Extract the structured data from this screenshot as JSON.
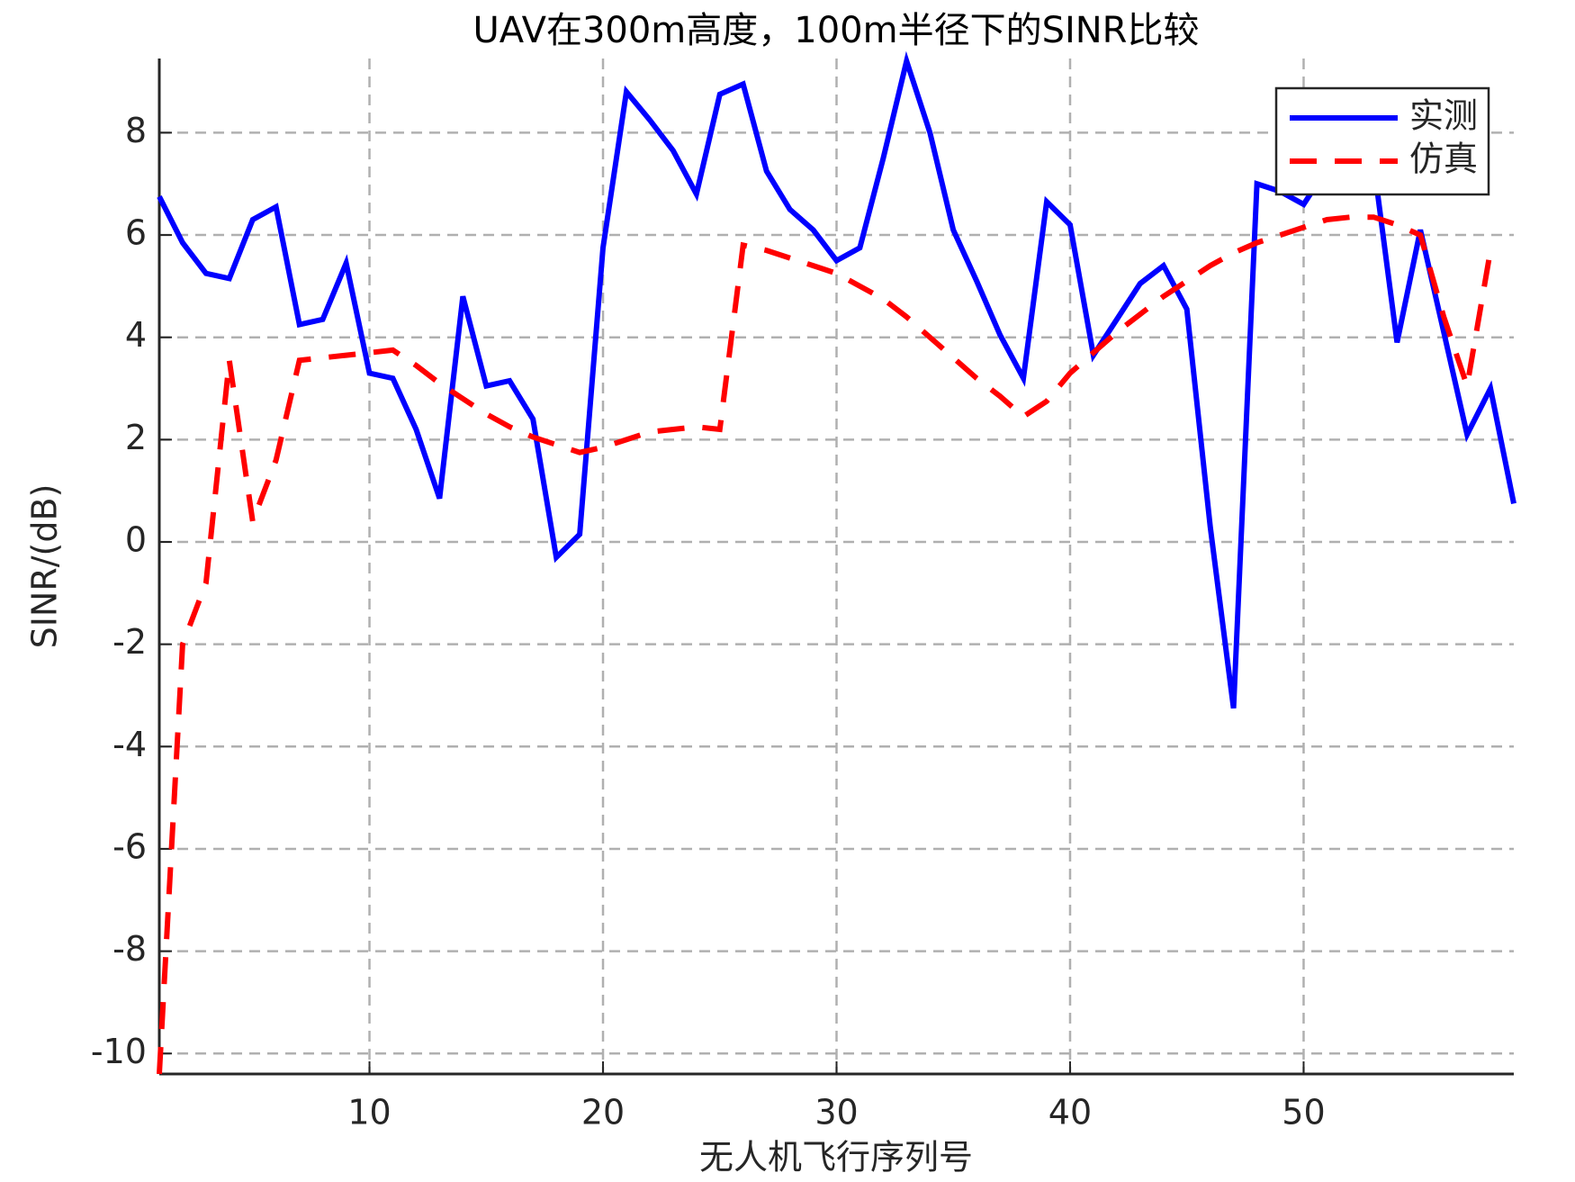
{
  "chart_data": {
    "type": "line",
    "title": "UAV在300m高度，100m半径下的SINR比较",
    "x_label": "无人机飞行序列号",
    "y_label": "SINR/(dB)",
    "x": [
      1,
      2,
      3,
      4,
      5,
      6,
      7,
      8,
      9,
      10,
      11,
      12,
      13,
      14,
      15,
      16,
      17,
      18,
      19,
      20,
      21,
      22,
      23,
      24,
      25,
      26,
      27,
      28,
      29,
      30,
      31,
      32,
      33,
      34,
      35,
      36,
      37,
      38,
      39,
      40,
      41,
      42,
      43,
      44,
      45,
      46,
      47,
      48,
      49,
      50,
      51,
      52,
      53,
      54,
      55,
      56,
      57,
      58,
      59
    ],
    "series": [
      {
        "name": "实测",
        "color": "#0000ff",
        "dash": "solid",
        "values": [
          6.75,
          5.85,
          5.25,
          5.15,
          6.3,
          6.55,
          4.25,
          4.35,
          5.45,
          3.3,
          3.2,
          2.2,
          0.85,
          4.8,
          3.05,
          3.15,
          2.4,
          -0.3,
          0.15,
          5.75,
          8.8,
          8.25,
          7.65,
          6.8,
          8.75,
          8.95,
          7.25,
          6.5,
          6.1,
          5.5,
          5.75,
          7.5,
          9.4,
          8.0,
          6.1,
          5.1,
          4.05,
          3.2,
          6.65,
          6.2,
          3.65,
          4.35,
          5.05,
          5.4,
          4.55,
          0.3,
          -3.25,
          7.0,
          6.85,
          6.6,
          7.3,
          7.6,
          7.4,
          3.9,
          6.1,
          4.1,
          2.1,
          3.0,
          0.75
        ]
      },
      {
        "name": "仿真",
        "color": "#ff0000",
        "dash": "dashed",
        "values": [
          -10.4,
          -2,
          -0.8,
          3.55,
          0.4,
          1.6,
          3.55,
          3.6,
          3.65,
          3.7,
          3.75,
          3.45,
          3.1,
          2.8,
          2.5,
          2.25,
          2.05,
          1.9,
          1.75,
          1.85,
          2.0,
          2.15,
          2.2,
          2.25,
          2.2,
          5.8,
          5.7,
          5.55,
          5.4,
          5.25,
          5.0,
          4.75,
          4.4,
          4.0,
          3.6,
          3.2,
          2.85,
          2.45,
          2.75,
          3.3,
          3.7,
          4.1,
          4.45,
          4.8,
          5.1,
          5.4,
          5.65,
          5.85,
          6.0,
          6.15,
          6.3,
          6.35,
          6.35,
          6.2,
          6.0,
          4.4,
          3.05,
          5.7,
          null
        ]
      }
    ],
    "xlim": [
      1,
      59
    ],
    "xticks": [
      10,
      20,
      30,
      40,
      50
    ],
    "ylim": [
      -10.4,
      9.45
    ],
    "yticks": [
      -10,
      -8,
      -6,
      -4,
      -2,
      0,
      2,
      4,
      6,
      8
    ],
    "grid": true,
    "legend": "northeast"
  }
}
